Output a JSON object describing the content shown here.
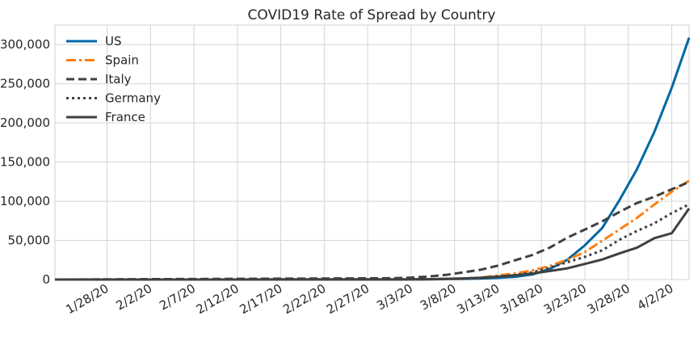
{
  "chart_data": {
    "type": "line",
    "title": "COVID19 Rate of Spread by Country",
    "xlabel": "",
    "ylabel": "",
    "x_start": "1/22/20",
    "x_end": "4/4/20",
    "x_tick_labels": [
      "1/28/20",
      "2/2/20",
      "2/7/20",
      "2/12/20",
      "2/17/20",
      "2/22/20",
      "2/27/20",
      "3/3/20",
      "3/8/20",
      "3/13/20",
      "3/18/20",
      "3/23/20",
      "3/28/20",
      "4/2/20"
    ],
    "y_tick_labels": [
      "0",
      "50,000",
      "100,000",
      "150,000",
      "200,000",
      "250,000",
      "300,000"
    ],
    "ylim": [
      0,
      325000
    ],
    "grid": true,
    "legend_position": "top-left",
    "x": [
      "3/1/20",
      "3/3/20",
      "3/5/20",
      "3/7/20",
      "3/9/20",
      "3/11/20",
      "3/13/20",
      "3/15/20",
      "3/17/20",
      "3/19/20",
      "3/21/20",
      "3/23/20",
      "3/25/20",
      "3/27/20",
      "3/29/20",
      "3/31/20",
      "4/2/20",
      "4/4/20"
    ],
    "series": [
      {
        "name": "US",
        "color": "#0067a5",
        "dash": "",
        "values": [
          100,
          150,
          300,
          500,
          700,
          1300,
          2200,
          3500,
          6500,
          13700,
          25500,
          43700,
          65800,
          101700,
          140900,
          188600,
          244900,
          308900
        ]
      },
      {
        "name": "Spain",
        "color": "#ff7f0e",
        "dash": "12,4,3,4",
        "values": [
          100,
          200,
          300,
          500,
          1200,
          2300,
          5200,
          7800,
          11800,
          17400,
          25400,
          35100,
          49500,
          64100,
          78800,
          95900,
          112100,
          126200
        ]
      },
      {
        "name": "Italy",
        "color": "#404040",
        "dash": "10,5",
        "values": [
          1700,
          2500,
          3800,
          5900,
          9200,
          12500,
          17700,
          24700,
          31500,
          41000,
          53600,
          63900,
          74400,
          86500,
          97700,
          105800,
          115200,
          124600
        ]
      },
      {
        "name": "Germany",
        "color": "#404040",
        "dash": "3,4",
        "values": [
          100,
          200,
          400,
          800,
          1200,
          1900,
          3700,
          5800,
          9300,
          15300,
          22200,
          29000,
          37300,
          50900,
          62100,
          71800,
          84800,
          96100
        ]
      },
      {
        "name": "France",
        "color": "#404040",
        "dash": "",
        "values": [
          100,
          200,
          400,
          900,
          1400,
          2300,
          3700,
          5400,
          7700,
          10900,
          14300,
          19900,
          25600,
          33400,
          40700,
          52800,
          59100,
          90800
        ]
      }
    ]
  }
}
